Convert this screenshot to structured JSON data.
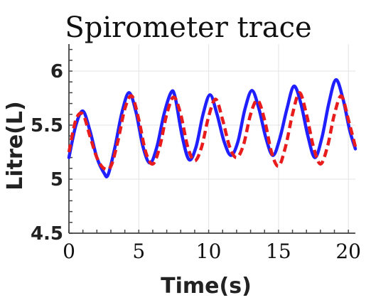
{
  "chart_data": {
    "type": "line",
    "title": "Spirometer trace",
    "xlabel": "Time(s)",
    "ylabel": "Litre(L)",
    "xlim": [
      0,
      20.5
    ],
    "ylim": [
      4.5,
      6.25
    ],
    "xticks": [
      0,
      5,
      10,
      15,
      20
    ],
    "xtick_labels": [
      "0",
      "5",
      "10",
      "15",
      "20"
    ],
    "yticks": [
      4.5,
      5,
      5.5,
      6
    ],
    "ytick_labels": [
      "4.5",
      "5",
      "5.5",
      "6"
    ],
    "grid": true,
    "series": [
      {
        "color": "#1f1fff",
        "style": "solid",
        "x": [
          0,
          0.5,
          1.0,
          1.5,
          2.0,
          2.5,
          2.8,
          3.3,
          3.8,
          4.3,
          4.8,
          5.3,
          5.8,
          6.3,
          6.8,
          7.3,
          7.6,
          8.1,
          8.6,
          9.1,
          9.6,
          10.1,
          10.6,
          11.1,
          11.6,
          12.1,
          12.6,
          13.1,
          13.6,
          14.1,
          14.6,
          15.1,
          15.6,
          16.1,
          16.6,
          17.1,
          17.6,
          18.1,
          18.6,
          19.1,
          19.6,
          20.1,
          20.5
        ],
        "y": [
          5.2,
          5.5,
          5.63,
          5.45,
          5.2,
          5.06,
          5.04,
          5.3,
          5.62,
          5.8,
          5.62,
          5.3,
          5.15,
          5.3,
          5.6,
          5.8,
          5.76,
          5.4,
          5.18,
          5.3,
          5.6,
          5.78,
          5.6,
          5.35,
          5.22,
          5.35,
          5.65,
          5.82,
          5.65,
          5.38,
          5.22,
          5.38,
          5.65,
          5.86,
          5.7,
          5.4,
          5.2,
          5.38,
          5.7,
          5.92,
          5.75,
          5.45,
          5.28
        ]
      },
      {
        "color": "#e81c1c",
        "style": "dashed",
        "x": [
          0,
          0.5,
          1.0,
          1.5,
          2.0,
          2.5,
          3.0,
          3.5,
          4.0,
          4.5,
          5.0,
          5.5,
          6.0,
          6.5,
          7.0,
          7.5,
          8.0,
          8.5,
          9.0,
          9.5,
          10.0,
          10.5,
          11.0,
          11.5,
          12.0,
          12.5,
          13.0,
          13.5,
          14.0,
          14.5,
          15.0,
          15.5,
          16.0,
          16.5,
          17.0,
          17.5,
          18.0,
          18.5,
          19.0,
          19.5,
          20.0,
          20.5
        ],
        "y": [
          5.25,
          5.55,
          5.6,
          5.4,
          5.2,
          5.1,
          5.12,
          5.35,
          5.65,
          5.77,
          5.55,
          5.25,
          5.14,
          5.3,
          5.6,
          5.76,
          5.6,
          5.3,
          5.17,
          5.3,
          5.58,
          5.74,
          5.55,
          5.3,
          5.2,
          5.32,
          5.6,
          5.73,
          5.55,
          5.25,
          5.12,
          5.3,
          5.6,
          5.8,
          5.6,
          5.3,
          5.14,
          5.3,
          5.6,
          5.77,
          5.55,
          5.3
        ]
      }
    ]
  }
}
